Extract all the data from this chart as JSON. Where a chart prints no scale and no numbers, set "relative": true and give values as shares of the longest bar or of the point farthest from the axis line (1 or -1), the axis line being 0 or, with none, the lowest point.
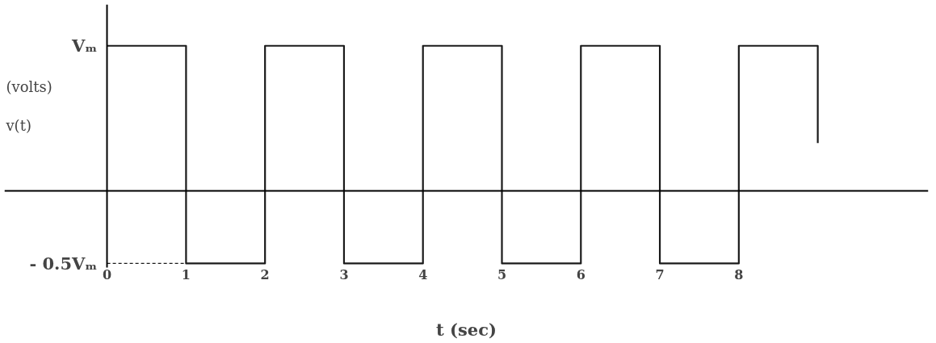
{
  "chart_data": {
    "type": "step",
    "xlabel": "t (sec)",
    "ylabel": "(volts)\nv(t)",
    "relative": true,
    "x": [
      0,
      1,
      2,
      3,
      4,
      5,
      6,
      7,
      8,
      9
    ],
    "series": [
      {
        "color": "#1a1a1a",
        "values": [
          1,
          -0.5,
          1,
          -0.5,
          1,
          -0.5,
          1,
          -0.5,
          1,
          0.33
        ]
      }
    ],
    "xlim": [
      -1.3,
      10.4
    ],
    "xticks": [
      0,
      1,
      2,
      3,
      4,
      5,
      6,
      7,
      8
    ],
    "annotations": [
      "Vₘ",
      "- 0.5Vₘ"
    ],
    "ref_lines": [
      {
        "axis": "y",
        "value": -0.5,
        "line_style": "dashed",
        "color": "#1a1a1a"
      }
    ]
  }
}
